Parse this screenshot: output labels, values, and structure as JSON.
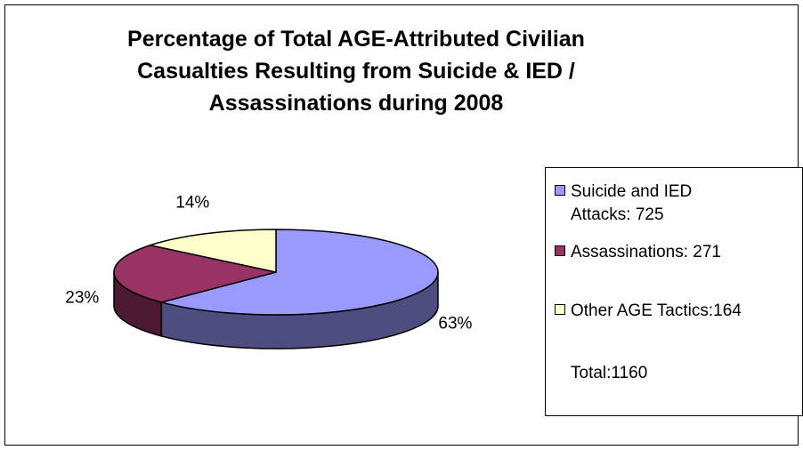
{
  "chart_data": {
    "type": "pie",
    "title": "Percentage of Total AGE-Attributed Civilian\nCasualties Resulting from Suicide & IED /\nAssassinations during 2008",
    "slices": [
      {
        "label": "Suicide and IED\nAttacks: 725",
        "value": 725,
        "percent_label": "63%",
        "color": "#9999ff",
        "side_color": "#4d4d80"
      },
      {
        "label": "Assassinations: 271",
        "value": 271,
        "percent_label": "23%",
        "color": "#993366",
        "side_color": "#4d1a33"
      },
      {
        "label": "Other AGE Tactics:164",
        "value": 164,
        "percent_label": "14%",
        "color": "#ffffcc",
        "side_color": "#808066"
      }
    ],
    "total_label": "Total:1160",
    "legend_position": "right",
    "three_d": true
  }
}
